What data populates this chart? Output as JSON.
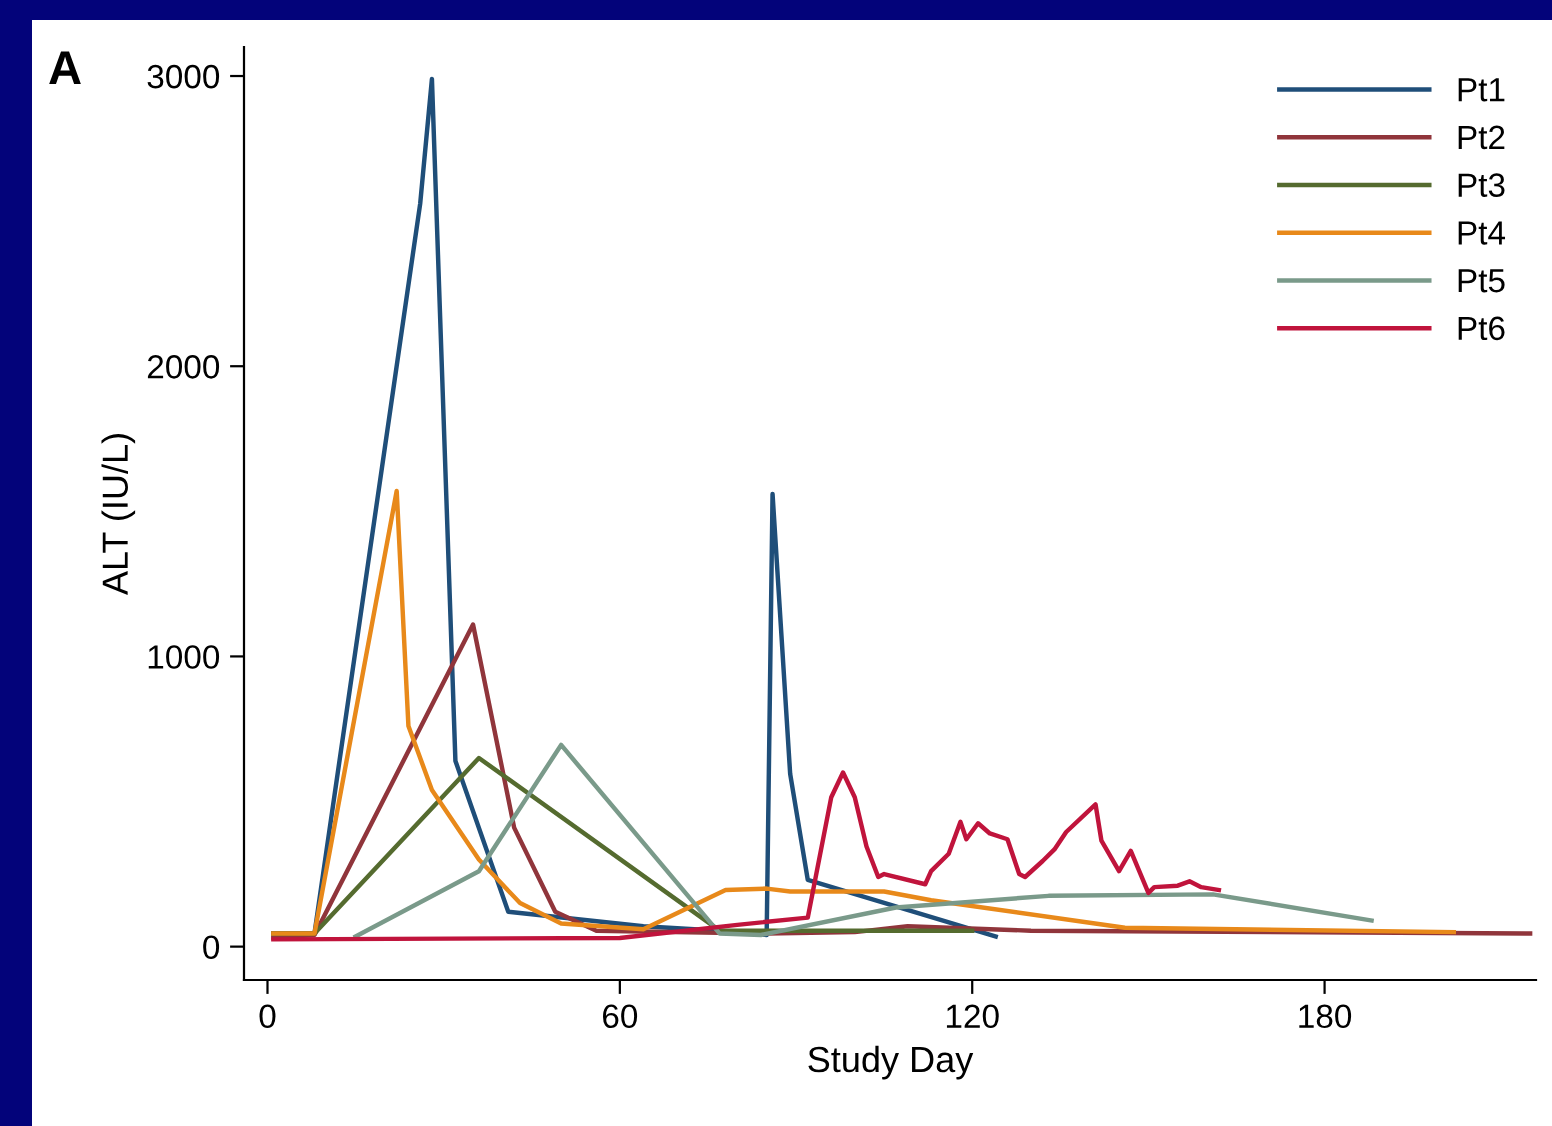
{
  "chart_data": {
    "type": "line",
    "xlabel": "Study Day",
    "ylabel": "ALT (IU/L)",
    "annotations": [
      "A"
    ],
    "xlim": [
      -4,
      216
    ],
    "xticks": [
      0,
      60,
      120,
      180
    ],
    "ylim": [
      -115,
      3100
    ],
    "yticks": [
      0,
      1000,
      2000,
      3000
    ],
    "grid": false,
    "legend": "top right",
    "marker": "none",
    "line_style": "solid",
    "series": [
      {
        "name": "Pt1",
        "color": "#1f4e79",
        "x": [
          1,
          8,
          26,
          28,
          32,
          41,
          64,
          77,
          85,
          86,
          89,
          92,
          124
        ],
        "values": [
          45,
          45,
          2560,
          2990,
          640,
          120,
          70,
          55,
          40,
          1560,
          595,
          230,
          35
        ]
      },
      {
        "name": "Pt2",
        "color": "#90353b",
        "x": [
          1,
          8,
          35,
          42,
          49,
          56,
          85,
          100,
          109,
          130,
          215
        ],
        "values": [
          30,
          40,
          1110,
          410,
          120,
          55,
          45,
          50,
          70,
          55,
          45
        ]
      },
      {
        "name": "Pt3",
        "color": "#556b2f",
        "x": [
          1,
          8,
          36,
          77,
          120
        ],
        "values": [
          45,
          45,
          650,
          55,
          55
        ]
      },
      {
        "name": "Pt4",
        "color": "#e8891a",
        "x": [
          1,
          8,
          22,
          24,
          28,
          36,
          43,
          50,
          64,
          78,
          85,
          89,
          105,
          113,
          146,
          202
        ],
        "values": [
          45,
          45,
          1570,
          760,
          540,
          300,
          150,
          80,
          60,
          195,
          200,
          190,
          190,
          160,
          65,
          50
        ]
      },
      {
        "name": "Pt5",
        "color": "#7a9a8a",
        "x": [
          15,
          36,
          50,
          77,
          84,
          107,
          133,
          161,
          188
        ],
        "values": [
          35,
          260,
          695,
          45,
          40,
          135,
          175,
          180,
          90
        ]
      },
      {
        "name": "Pt6",
        "color": "#c0143c",
        "x": [
          1,
          60,
          80,
          92,
          96,
          98,
          100,
          102,
          104,
          105,
          112,
          113,
          116,
          118,
          119,
          121,
          123,
          126,
          128,
          129,
          132,
          134,
          136,
          141,
          142,
          145,
          147,
          150,
          151,
          155,
          157,
          159,
          162
        ],
        "values": [
          25,
          30,
          75,
          100,
          515,
          600,
          515,
          345,
          240,
          250,
          215,
          260,
          320,
          430,
          370,
          425,
          390,
          370,
          250,
          240,
          295,
          335,
          395,
          490,
          365,
          260,
          330,
          185,
          205,
          210,
          225,
          205,
          195
        ]
      }
    ]
  }
}
